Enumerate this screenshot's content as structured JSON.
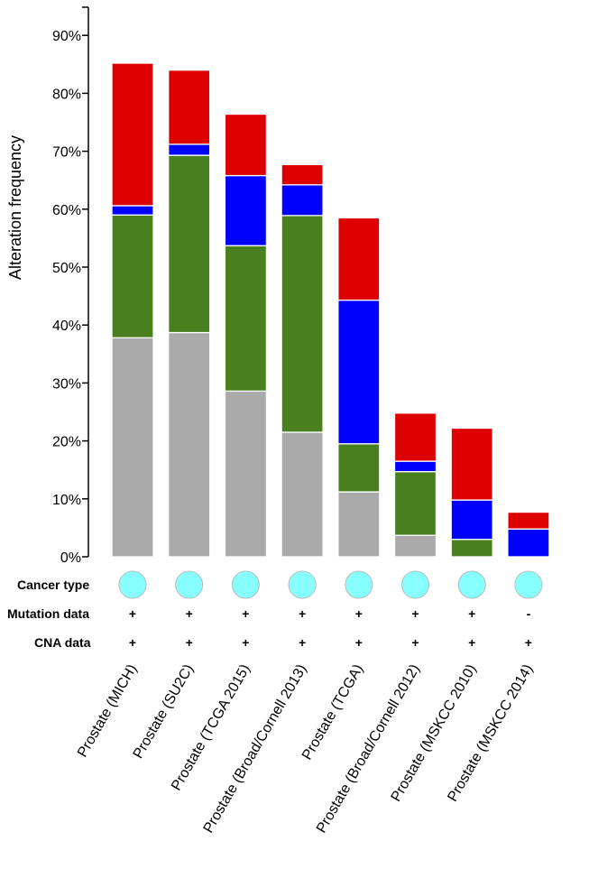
{
  "chart_data": {
    "type": "bar",
    "stacked": true,
    "ylabel": "Alteration frequency",
    "ylim": [
      0,
      95
    ],
    "yticks": [
      "0%",
      "10%",
      "20%",
      "30%",
      "40%",
      "50%",
      "60%",
      "70%",
      "80%",
      "90%"
    ],
    "categories": [
      "Prostate (MICH)",
      "Prostate (SU2C)",
      "Prostate (TCGA 2015)",
      "Prostate (Broad/Cornell 2013)",
      "Prostate (TCGA)",
      "Prostate (Broad/Cornell 2012)",
      "Prostate (MSKCC 2010)",
      "Prostate (MSKCC 2014)"
    ],
    "series": [
      {
        "color": "#aaaaaa",
        "values": [
          37.8,
          38.7,
          28.6,
          21.5,
          11.2,
          3.7,
          0,
          0
        ]
      },
      {
        "color": "#4a7f20",
        "values": [
          21.2,
          30.6,
          25.1,
          37.4,
          8.3,
          11.0,
          3.0,
          0
        ]
      },
      {
        "color": "#0000ff",
        "values": [
          1.6,
          1.9,
          12.1,
          5.3,
          24.8,
          1.8,
          6.8,
          4.8
        ]
      },
      {
        "color": "#dd0000",
        "values": [
          24.6,
          12.8,
          10.6,
          3.5,
          14.2,
          8.3,
          12.4,
          2.9
        ]
      }
    ],
    "grid": false,
    "legend": "none"
  },
  "annotation_rows": {
    "cancer_type": {
      "label": "Cancer type",
      "color": "#88ffff",
      "icon": "cancer-type-circle-icon"
    },
    "mutation_data": {
      "label": "Mutation data",
      "flags": [
        "+",
        "+",
        "+",
        "+",
        "+",
        "+",
        "+",
        "-"
      ]
    },
    "cna_data": {
      "label": "CNA data",
      "flags": [
        "+",
        "+",
        "+",
        "+",
        "+",
        "+",
        "+",
        "+"
      ]
    }
  }
}
